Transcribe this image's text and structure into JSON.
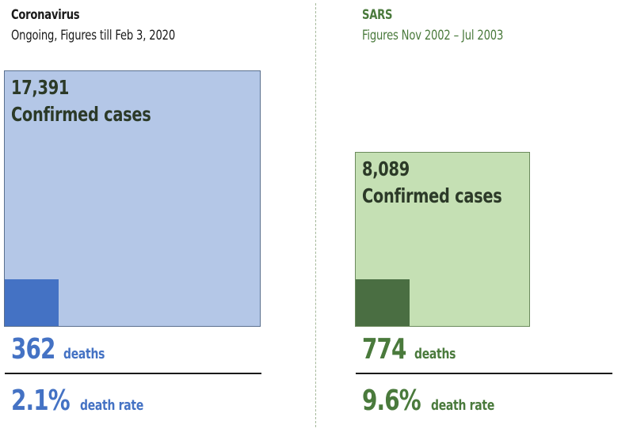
{
  "colors": {
    "corona_outer": "#b4c7e7",
    "corona_outer_border": "#5a6f8e",
    "corona_inner": "#4472c4",
    "corona_text": "#4472c4",
    "sars_outer": "#c5e0b4",
    "sars_outer_border": "#6b8a5c",
    "sars_inner": "#4a6e42",
    "sars_text": "#4a7a3c",
    "divider": "#a6b99c"
  },
  "chart_data": {
    "type": "area-squares",
    "panels": [
      {
        "name": "Coronavirus",
        "subtitle": "Ongoing, Figures till Feb 3, 2020",
        "confirmed_cases": 17391,
        "confirmed_cases_text": "17,391",
        "confirmed_label": "Confirmed cases",
        "deaths": 362,
        "deaths_text": "362",
        "deaths_label": "deaths",
        "death_rate": 2.1,
        "death_rate_text": "2.1%",
        "death_rate_label": "death rate"
      },
      {
        "name": "SARS",
        "subtitle": "Figures Nov 2002 – Jul 2003",
        "confirmed_cases": 8089,
        "confirmed_cases_text": "8,089",
        "confirmed_label": "Confirmed cases",
        "deaths": 774,
        "deaths_text": "774",
        "deaths_label": "deaths",
        "death_rate": 9.6,
        "death_rate_text": "9.6%",
        "death_rate_label": "death rate"
      }
    ]
  }
}
